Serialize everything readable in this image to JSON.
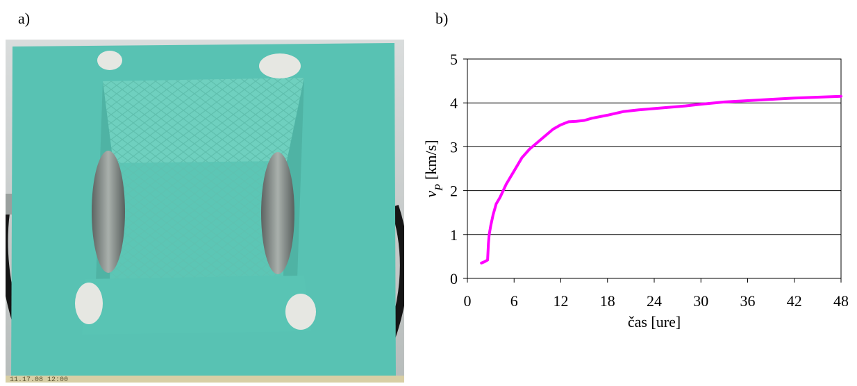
{
  "panels": {
    "a_label": "a)",
    "b_label": "b)"
  },
  "photo": {
    "timestamp": "11.17.08 12:00"
  },
  "colors": {
    "series": "#ff00ff",
    "grid": "#000000",
    "axis": "#000000"
  },
  "chart_data": {
    "type": "line",
    "title": "",
    "xlabel": "čas [ure]",
    "ylabel": "vP [km/s]",
    "ylabel_main": "v",
    "ylabel_sub": "P",
    "ylabel_unit": "[km/s]",
    "xlim": [
      0,
      48
    ],
    "ylim": [
      0,
      5
    ],
    "xticks": [
      0,
      6,
      12,
      18,
      24,
      30,
      36,
      42,
      48
    ],
    "yticks": [
      0,
      1,
      2,
      3,
      4,
      5
    ],
    "grid": "horizontal",
    "legend": "none",
    "series": [
      {
        "x": [
          1.8,
          2.2,
          2.6,
          2.7,
          2.8,
          3.0,
          3.3,
          3.7,
          4.2,
          5.0,
          6.0,
          7.0,
          8.0,
          9.0,
          10.0,
          11.0,
          12.0,
          13.0,
          14.0,
          15.0,
          16.0,
          18.0,
          20.0,
          22.0,
          24.0,
          26.0,
          28.0,
          30.0,
          33.0,
          36.0,
          39.0,
          42.0,
          45.0,
          48.0
        ],
        "y": [
          0.35,
          0.38,
          0.42,
          0.8,
          1.0,
          1.2,
          1.45,
          1.7,
          1.85,
          2.15,
          2.45,
          2.75,
          2.95,
          3.1,
          3.25,
          3.4,
          3.5,
          3.57,
          3.58,
          3.6,
          3.65,
          3.72,
          3.8,
          3.84,
          3.87,
          3.9,
          3.93,
          3.97,
          4.02,
          4.05,
          4.08,
          4.11,
          4.13,
          4.15
        ]
      }
    ]
  }
}
